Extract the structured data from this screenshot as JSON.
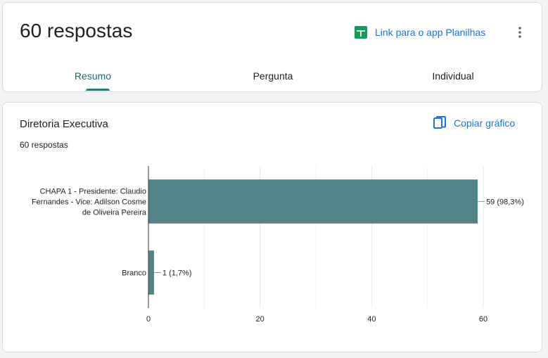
{
  "header": {
    "title": "60 respostas",
    "sheets_link": "Link para o app Planilhas",
    "more_icon": "more-vert-icon",
    "sheets_icon": "sheets-icon",
    "accent": "#1a73e8",
    "sheets_color": "#0f9d58"
  },
  "tabs": [
    {
      "label": "Resumo",
      "active": true
    },
    {
      "label": "Pergunta",
      "active": false
    },
    {
      "label": "Individual",
      "active": false
    }
  ],
  "question": {
    "title": "Diretoria Executiva",
    "count_text": "60 respostas",
    "copy_label": "Copiar gráfico",
    "copy_icon": "copy-icon"
  },
  "chart_data": {
    "type": "bar",
    "orientation": "horizontal",
    "categories": [
      [
        "CHAPA 1 - Presidente: Claudio",
        "Fernandes - Vice: Adilson Cosme",
        "de Oliveira Pereira"
      ],
      [
        "Branco"
      ]
    ],
    "values": [
      59,
      1
    ],
    "data_labels": [
      "59 (98,3%)",
      "1 (1,7%)"
    ],
    "xlim": [
      0,
      60
    ],
    "xticks": [
      0,
      20,
      40,
      60
    ],
    "grid": true,
    "bar_color": "#528487"
  }
}
